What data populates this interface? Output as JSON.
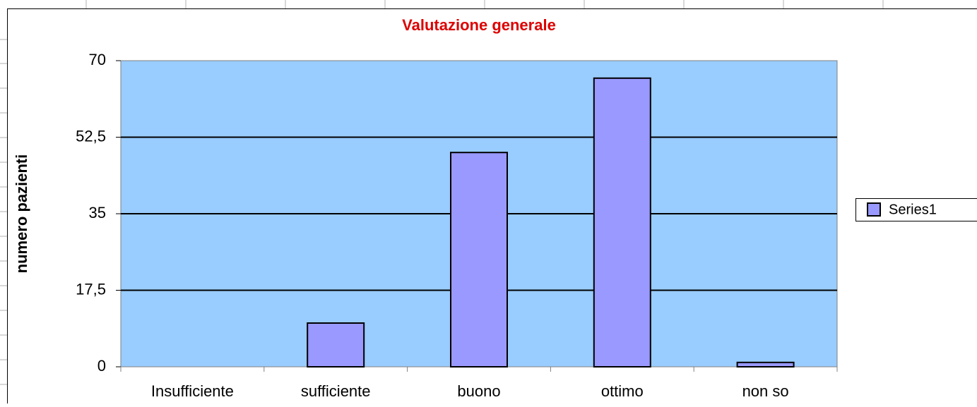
{
  "chart_data": {
    "type": "bar",
    "title": "Valutazione generale",
    "y_label": "numero pazienti",
    "categories": [
      "Insufficiente",
      "sufficiente",
      "buono",
      "ottimo",
      "non so"
    ],
    "series": [
      {
        "name": "Series1",
        "color": "#9999ff",
        "values": [
          0,
          10,
          49,
          66,
          1
        ]
      }
    ],
    "ylim": [
      0,
      70
    ],
    "yticks": [
      0,
      {
        "value": 17.5,
        "label": "17,5"
      },
      35,
      {
        "value": 52.5,
        "label": "52,5"
      },
      70
    ],
    "grid": true,
    "legend": "right"
  }
}
